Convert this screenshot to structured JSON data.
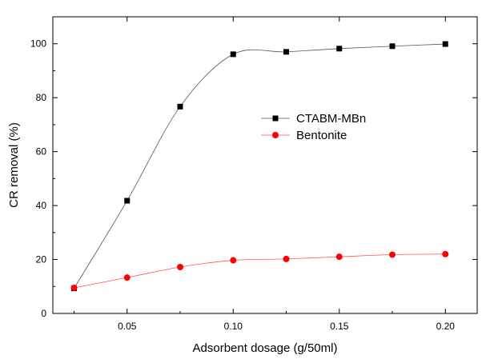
{
  "chart_data": {
    "type": "line",
    "xlabel": "Adsorbent dosage (g/50ml)",
    "ylabel": "CR removal (%)",
    "xlim": [
      0.015,
      0.215
    ],
    "ylim": [
      0,
      110
    ],
    "x_ticks": [
      0.05,
      0.1,
      0.15,
      0.2
    ],
    "x_tick_labels": [
      "0.05",
      "0.10",
      "0.15",
      "0.20"
    ],
    "y_ticks": [
      0,
      20,
      40,
      60,
      80,
      100
    ],
    "y_tick_labels": [
      "0",
      "20",
      "40",
      "60",
      "80",
      "100"
    ],
    "grid": false,
    "legend_position": "center-right",
    "series": [
      {
        "name": "CTABM-MBn",
        "marker": "square",
        "color": "#000000",
        "line_color": "#555555",
        "x": [
          0.025,
          0.05,
          0.075,
          0.1,
          0.125,
          0.15,
          0.175,
          0.2
        ],
        "y": [
          9.3,
          41.8,
          76.7,
          96.1,
          97.0,
          98.2,
          99.1,
          99.9
        ]
      },
      {
        "name": "Bentonite",
        "marker": "circle",
        "color": "#ff0000",
        "line_color": "#ff5555",
        "x": [
          0.025,
          0.05,
          0.075,
          0.1,
          0.125,
          0.15,
          0.175,
          0.2
        ],
        "y": [
          9.5,
          13.3,
          17.2,
          19.7,
          20.2,
          21.0,
          21.8,
          22.0
        ]
      }
    ]
  }
}
